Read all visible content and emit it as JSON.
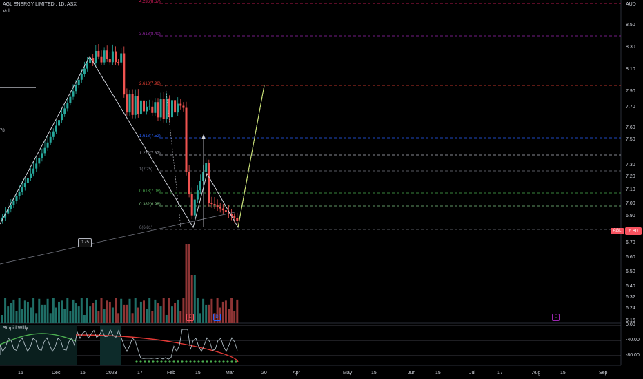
{
  "header": {
    "title": "AGL ENERGY LIMITED., 1D, ASX",
    "vol_label": "Vol"
  },
  "price_axis": {
    "currency": "AUD",
    "ticks": [
      "8.50",
      "8.30",
      "8.10",
      "7.90",
      "7.70",
      "7.60",
      "7.50",
      "7.30",
      "7.20",
      "7.10",
      "7.00",
      "6.90",
      "6.70",
      "6.60",
      "6.50",
      "6.40",
      "6.32",
      "6.24",
      "6.16"
    ]
  },
  "indicator": {
    "name": "Stupid Willy",
    "ticks": [
      "0.00",
      "-40.00",
      "-80.00"
    ]
  },
  "time_axis": [
    "15",
    "Dec",
    "15",
    "2023",
    "17",
    "Feb",
    "15",
    "Mar",
    "20",
    "Apr",
    "May",
    "15",
    "Jun",
    "15",
    "Jul",
    "17",
    "Aug",
    "15",
    "Sep"
  ],
  "fib_levels": [
    {
      "label": "4.236(8.67)",
      "color": "#e91e63"
    },
    {
      "label": "3.618(8.40)",
      "color": "#9c27b0"
    },
    {
      "label": "2.618(7.96)",
      "color": "#f44336"
    },
    {
      "label": "1.618(7.52)",
      "color": "#2962ff"
    },
    {
      "label": "1.272(7.37)",
      "color": "#b2b5be"
    },
    {
      "label": "1(7.25)",
      "color": "#787b86"
    },
    {
      "label": "0.618(7.08)",
      "color": "#4caf50"
    },
    {
      "label": "0.382(6.98)",
      "color": "#81c784"
    },
    {
      "label": "0(6.81)",
      "color": "#787b86"
    }
  ],
  "current_price": {
    "symbol": "AGL",
    "value": "6.80",
    "color": "#f7525f"
  },
  "ratio_label": "0.75",
  "left_edge_label": "78",
  "events": [
    {
      "letter": "E",
      "color": "#f7525f"
    },
    {
      "letter": "D",
      "color": "#2962ff"
    },
    {
      "letter": "E",
      "color": "#9c27b0"
    }
  ],
  "colors": {
    "up": "#26a69a",
    "down": "#ef5350",
    "vol_up": "#1f6f67",
    "vol_down": "#8f3535"
  }
}
